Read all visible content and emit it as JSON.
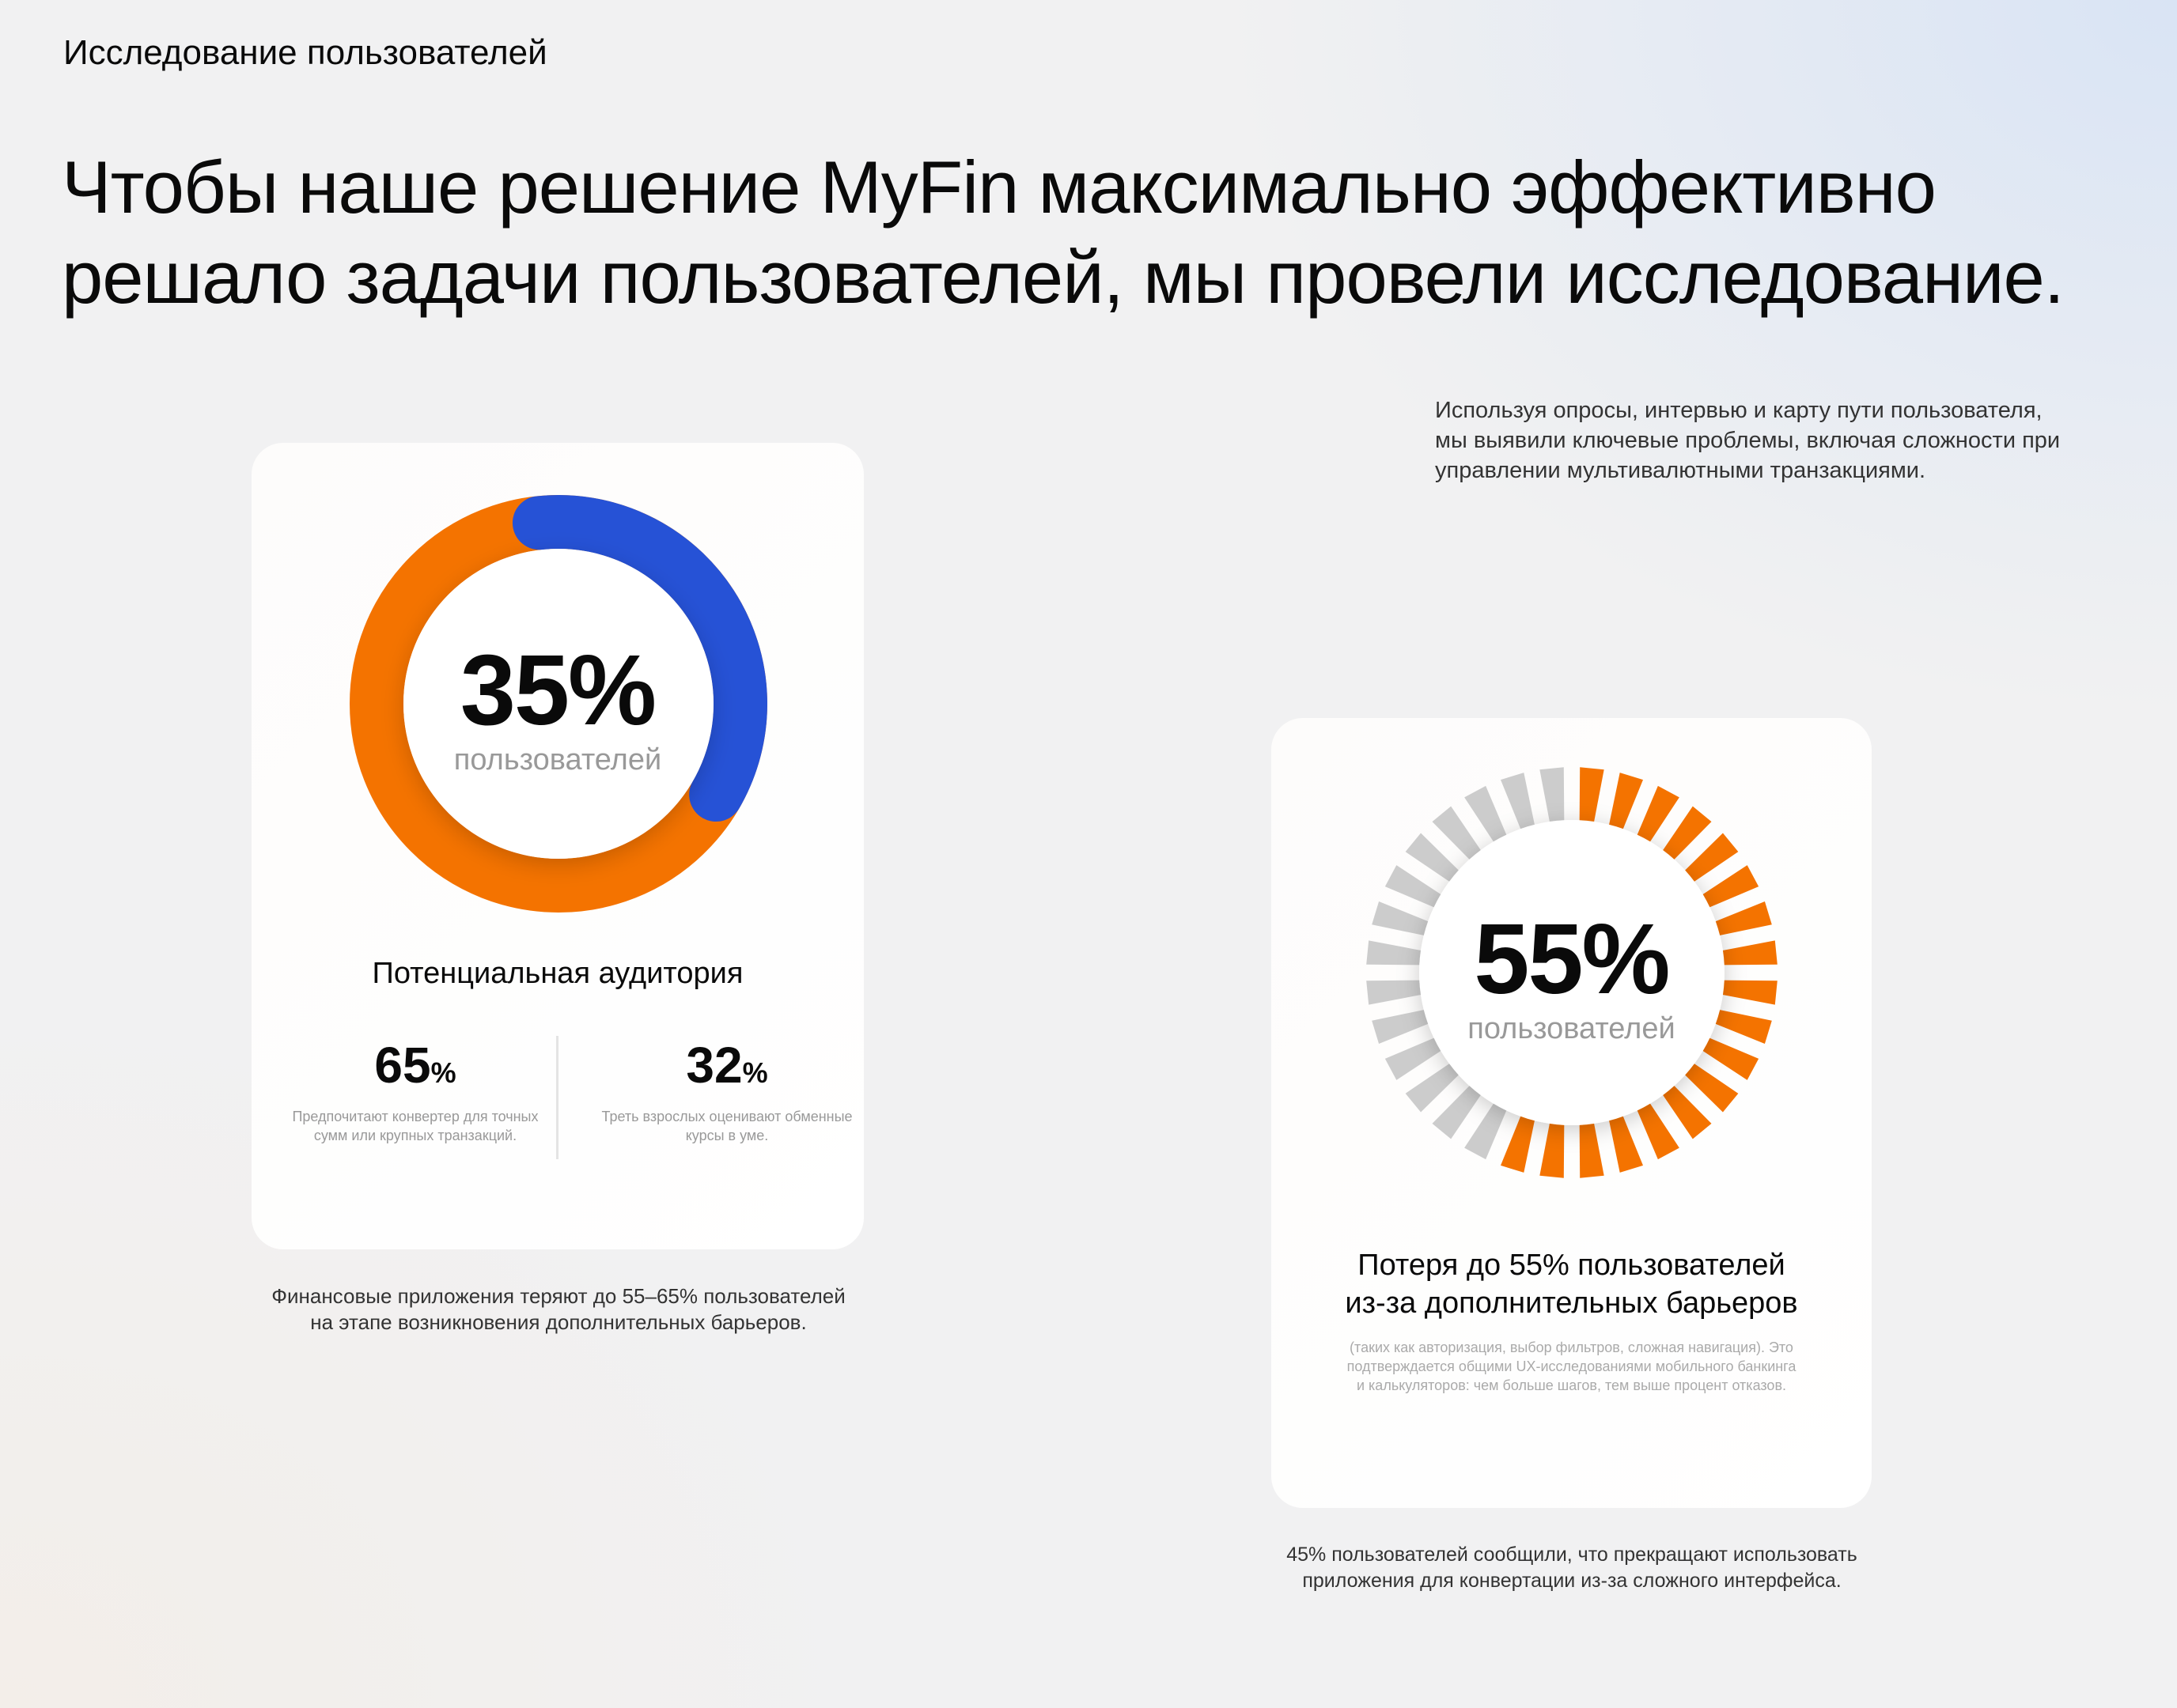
{
  "header": {
    "section_label": "Исследование пользователей",
    "headline_line1": "Чтобы наше решение MyFin максимально эффективно",
    "headline_line2": "решало задачи пользователей, мы провели исследование.",
    "intro_line1": "Используя опросы, интервью и карту пути пользователя,",
    "intro_line2": "мы выявили ключевые проблемы, включая сложности при",
    "intro_line3": "управлении мультивалютными транзакциями."
  },
  "colors": {
    "orange": "#F47300",
    "blue": "#2652D6",
    "gray": "#CCCCCC"
  },
  "card_audience": {
    "value": "35%",
    "unit": "пользователей",
    "title": "Потенциальная аудитория",
    "stats": [
      {
        "number": "65",
        "suffix": "%",
        "desc_line1": "Предпочитают конвертер для точных",
        "desc_line2": "сумм или крупных транзакций."
      },
      {
        "number": "32",
        "suffix": "%",
        "desc_line1": "Треть взрослых оценивают обменные",
        "desc_line2": "курсы в уме."
      }
    ],
    "caption_line1": "Финансовые приложения теряют до 55–65% пользователей",
    "caption_line2": "на этапе возникновения дополнительных барьеров."
  },
  "card_loss": {
    "value": "55%",
    "unit": "пользователей",
    "title_line1": "Потеря до 55% пользователей",
    "title_line2": "из-за дополнительных барьеров",
    "note_line1": "(таких как авторизация, выбор фильтров, сложная навигация). Это",
    "note_line2": "подтверждается общими UX-исследованиями мобильного банкинга",
    "note_line3": "и калькуляторов: чем больше шагов, тем выше процент отказов.",
    "caption_line1": "45% пользователей сообщили, что прекращают использовать",
    "caption_line2": "приложения для конвертации из-за сложного интерфейса."
  },
  "chart_data": [
    {
      "type": "pie",
      "variant": "donut",
      "values": [
        35,
        65
      ],
      "colors": [
        "#2652D6",
        "#F47300"
      ],
      "label": "35%"
    },
    {
      "type": "pie",
      "variant": "segmented-ring",
      "segments_total": 32,
      "segments_highlighted": 18,
      "percent": 55,
      "colors": [
        "#F47300",
        "#CCCCCC"
      ],
      "label": "55%"
    }
  ]
}
